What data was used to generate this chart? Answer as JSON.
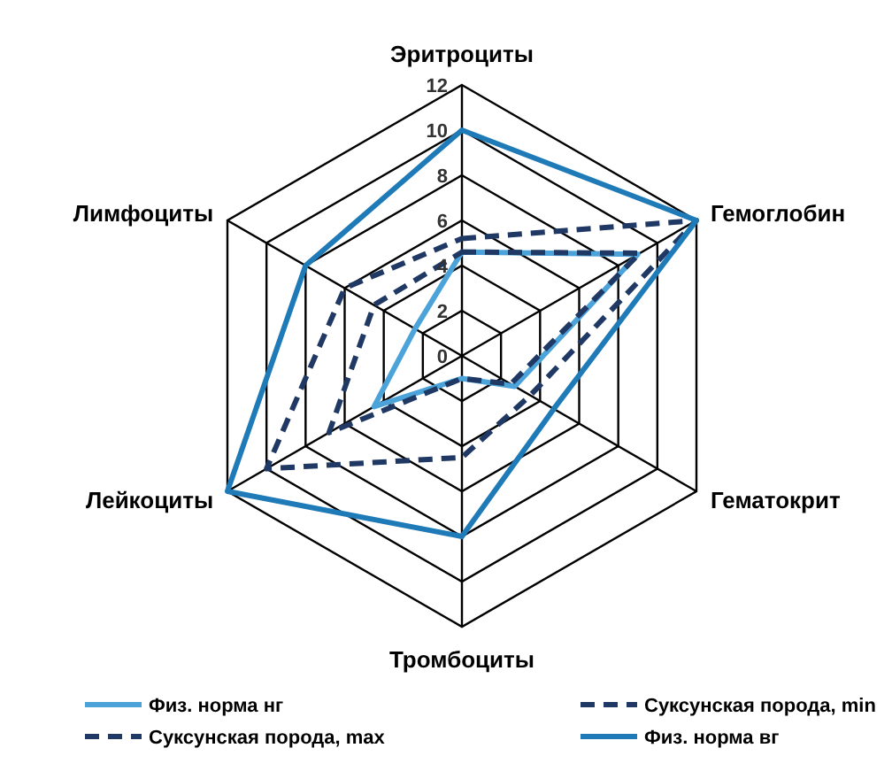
{
  "chart_data": {
    "type": "radar",
    "categories": [
      "Эритроциты",
      "Гемоглобин",
      "Гематокрит",
      "Тромбоциты",
      "Лейкоциты",
      "Лимфоциты"
    ],
    "ylim": [
      0,
      12
    ],
    "yticks": [
      0,
      2,
      4,
      6,
      8,
      10,
      12
    ],
    "grid": true,
    "legend": "bottom",
    "series": [
      {
        "name": "Физ. норма нг",
        "color": "#4ba3d9",
        "line_style": "solid",
        "values": [
          4.6,
          9,
          2.7,
          1,
          4.5,
          2.4
        ]
      },
      {
        "name": "Суксунская порода, min",
        "color": "#1f3864",
        "line_style": "dashed",
        "values": [
          4.6,
          9.1,
          2.5,
          1,
          6.8,
          4.5
        ]
      },
      {
        "name": "Суксунская порода, max",
        "color": "#1f3864",
        "line_style": "dashed",
        "values": [
          5.2,
          12,
          3.5,
          4.5,
          10,
          6
        ]
      },
      {
        "name": "Физ. норма вг",
        "color": "#1f7ab8",
        "line_style": "solid",
        "values": [
          10,
          12,
          4.7,
          8,
          12,
          8
        ]
      }
    ]
  }
}
